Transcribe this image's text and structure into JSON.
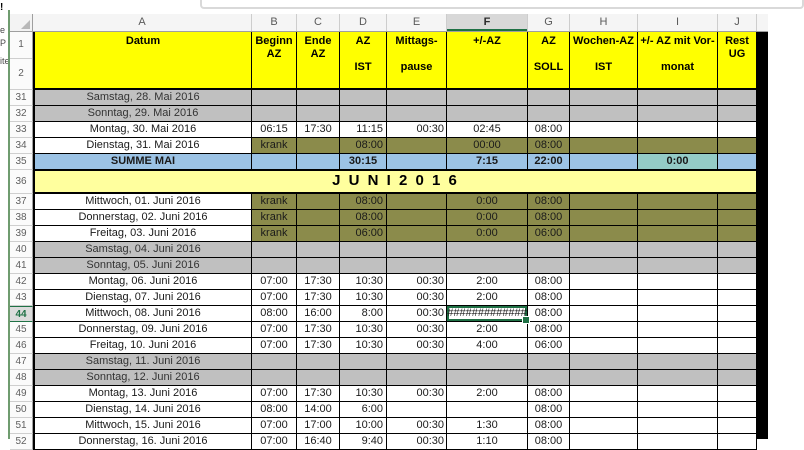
{
  "surroundings": {
    "left_edge_fragments": [
      "!",
      "e",
      "P",
      "ite"
    ]
  },
  "sheet": {
    "selected_cell": "F44",
    "selected_column": "F",
    "selected_row": "44",
    "row1_label": "1",
    "row2_label": "2",
    "column_letters": [
      "A",
      "B",
      "C",
      "D",
      "E",
      "F",
      "G",
      "H",
      "I",
      "J"
    ],
    "headers": {
      "A": "Datum",
      "B": "Beginn\nAZ",
      "C": "Ende\nAZ",
      "D": "AZ\n\nIST",
      "E": "Mittags-\n\npause",
      "F": "+/-AZ",
      "G": "AZ\n\nSOLL",
      "H": "Wochen-AZ\n\nIST",
      "I": "+/- AZ mit Vor-\n\nmonat",
      "J": "Rest\nUG"
    },
    "colors": {
      "header_fill": "#ffff00",
      "month_banner_fill": "#ffff9e",
      "weekend_fill": "#c0c0c0",
      "sick_fill": "#8b8b4b",
      "sum_fill": "#9cc3e5",
      "sum_accent_fill": "#94cbc6",
      "selection_green": "#1f7145",
      "window_border_green": "#6f9c6f"
    },
    "rows": [
      {
        "n": "31",
        "kind": "weekend",
        "cells": {
          "A": "Samstag, 28. Mai 2016",
          "B": "",
          "C": "",
          "D": "",
          "E": "",
          "F": "",
          "G": "",
          "H": "",
          "I": "",
          "J": ""
        }
      },
      {
        "n": "32",
        "kind": "weekend",
        "cells": {
          "A": "Sonntag, 29. Mai 2016",
          "B": "",
          "C": "",
          "D": "",
          "E": "",
          "F": "",
          "G": "",
          "H": "",
          "I": "",
          "J": ""
        }
      },
      {
        "n": "33",
        "kind": "work",
        "cells": {
          "A": "Montag, 30. Mai 2016",
          "B": "06:15",
          "C": "17:30",
          "D": "11:15",
          "E": "00:30",
          "F": "02:45",
          "G": "08:00",
          "H": "",
          "I": "",
          "J": ""
        }
      },
      {
        "n": "34",
        "kind": "sick",
        "cells": {
          "A": "Dienstag, 31. Mai 2016",
          "B": "krank",
          "C": "",
          "D": "08:00",
          "E": "",
          "F": "00:00",
          "G": "08:00",
          "H": "",
          "I": "",
          "J": ""
        }
      },
      {
        "n": "35",
        "kind": "sum",
        "cells": {
          "A": "SUMME MAI",
          "B": "",
          "C": "",
          "D": "30:15",
          "E": "",
          "F": "7:15",
          "G": "22:00",
          "H": "",
          "I": "0:00",
          "J": ""
        }
      },
      {
        "n": "36",
        "kind": "month",
        "label": "J U N I    2 0 1 6"
      },
      {
        "n": "37",
        "kind": "sick",
        "cells": {
          "A": "Mittwoch, 01. Juni 2016",
          "B": "krank",
          "C": "",
          "D": "08:00",
          "E": "",
          "F": "0:00",
          "G": "08:00",
          "H": "",
          "I": "",
          "J": ""
        }
      },
      {
        "n": "38",
        "kind": "sick",
        "cells": {
          "A": "Donnerstag, 02. Juni 2016",
          "B": "krank",
          "C": "",
          "D": "08:00",
          "E": "",
          "F": "0:00",
          "G": "08:00",
          "H": "",
          "I": "",
          "J": ""
        }
      },
      {
        "n": "39",
        "kind": "sick",
        "cells": {
          "A": "Freitag, 03. Juni 2016",
          "B": "krank",
          "C": "",
          "D": "06:00",
          "E": "",
          "F": "0:00",
          "G": "06:00",
          "H": "",
          "I": "",
          "J": ""
        }
      },
      {
        "n": "40",
        "kind": "weekend",
        "cells": {
          "A": "Samstag, 04. Juni 2016",
          "B": "",
          "C": "",
          "D": "",
          "E": "",
          "F": "",
          "G": "",
          "H": "",
          "I": "",
          "J": ""
        }
      },
      {
        "n": "41",
        "kind": "weekend",
        "cells": {
          "A": "Sonntag, 05. Juni 2016",
          "B": "",
          "C": "",
          "D": "",
          "E": "",
          "F": "",
          "G": "",
          "H": "",
          "I": "",
          "J": ""
        }
      },
      {
        "n": "42",
        "kind": "work",
        "cells": {
          "A": "Montag, 06. Juni 2016",
          "B": "07:00",
          "C": "17:30",
          "D": "10:30",
          "E": "00:30",
          "F": "2:00",
          "G": "08:00",
          "H": "",
          "I": "",
          "J": ""
        }
      },
      {
        "n": "43",
        "kind": "work",
        "cells": {
          "A": "Dienstag, 07. Juni 2016",
          "B": "07:00",
          "C": "17:30",
          "D": "10:30",
          "E": "00:30",
          "F": "2:00",
          "G": "08:00",
          "H": "",
          "I": "",
          "J": ""
        }
      },
      {
        "n": "44",
        "kind": "work",
        "cells": {
          "A": "Mittwoch, 08. Juni 2016",
          "B": "08:00",
          "C": "16:00",
          "D": "8:00",
          "E": "00:30",
          "F": "#############",
          "G": "08:00",
          "H": "",
          "I": "",
          "J": ""
        }
      },
      {
        "n": "45",
        "kind": "work",
        "cells": {
          "A": "Donnerstag, 09. Juni 2016",
          "B": "07:00",
          "C": "17:30",
          "D": "10:30",
          "E": "00:30",
          "F": "2:00",
          "G": "08:00",
          "H": "",
          "I": "",
          "J": ""
        }
      },
      {
        "n": "46",
        "kind": "work",
        "cells": {
          "A": "Freitag, 10. Juni 2016",
          "B": "07:00",
          "C": "17:30",
          "D": "10:30",
          "E": "00:30",
          "F": "4:00",
          "G": "06:00",
          "H": "",
          "I": "",
          "J": ""
        }
      },
      {
        "n": "47",
        "kind": "weekend",
        "cells": {
          "A": "Samstag, 11. Juni 2016",
          "B": "",
          "C": "",
          "D": "",
          "E": "",
          "F": "",
          "G": "",
          "H": "",
          "I": "",
          "J": ""
        }
      },
      {
        "n": "48",
        "kind": "weekend",
        "cells": {
          "A": "Sonntag, 12. Juni 2016",
          "B": "",
          "C": "",
          "D": "",
          "E": "",
          "F": "",
          "G": "",
          "H": "",
          "I": "",
          "J": ""
        }
      },
      {
        "n": "49",
        "kind": "work",
        "cells": {
          "A": "Montag, 13. Juni 2016",
          "B": "07:00",
          "C": "17:30",
          "D": "10:30",
          "E": "00:30",
          "F": "2:00",
          "G": "08:00",
          "H": "",
          "I": "",
          "J": ""
        }
      },
      {
        "n": "50",
        "kind": "work",
        "cells": {
          "A": "Dienstag, 14. Juni 2016",
          "B": "08:00",
          "C": "14:00",
          "D": "6:00",
          "E": "",
          "F": "",
          "G": "08:00",
          "H": "",
          "I": "",
          "J": ""
        }
      },
      {
        "n": "51",
        "kind": "work",
        "cells": {
          "A": "Mittwoch, 15. Juni 2016",
          "B": "07:00",
          "C": "17:00",
          "D": "10:00",
          "E": "00:30",
          "F": "1:30",
          "G": "08:00",
          "H": "",
          "I": "",
          "J": ""
        }
      },
      {
        "n": "52",
        "kind": "work",
        "cells": {
          "A": "Donnerstag, 16. Juni 2016",
          "B": "07:00",
          "C": "16:40",
          "D": "9:40",
          "E": "00:30",
          "F": "1:10",
          "G": "08:00",
          "H": "",
          "I": "",
          "J": ""
        }
      }
    ]
  }
}
